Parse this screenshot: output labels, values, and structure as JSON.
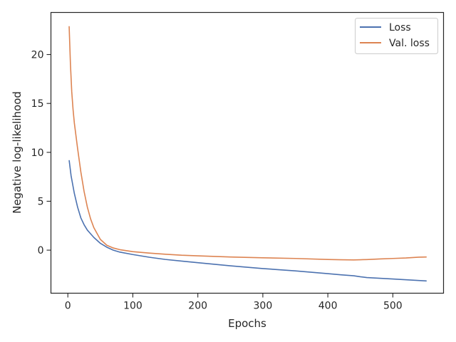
{
  "chart_data": {
    "type": "line",
    "title": "",
    "xlabel": "Epochs",
    "ylabel": "Negative log-likelihood",
    "xlim": [
      -26,
      578
    ],
    "ylim": [
      -4.4,
      24.3
    ],
    "xticks": [
      0,
      100,
      200,
      300,
      400,
      500
    ],
    "yticks": [
      0,
      5,
      10,
      15,
      20
    ],
    "grid": false,
    "legend_position": "top-right",
    "series": [
      {
        "name": "Loss",
        "color": "#4c72b0",
        "x": [
          2,
          5,
          10,
          15,
          20,
          25,
          30,
          40,
          50,
          60,
          70,
          80,
          100,
          125,
          150,
          175,
          200,
          250,
          300,
          350,
          400,
          420,
          440,
          450,
          460,
          500,
          540,
          552
        ],
        "y": [
          9.2,
          7.6,
          5.8,
          4.4,
          3.3,
          2.6,
          2.05,
          1.3,
          0.7,
          0.3,
          0.0,
          -0.2,
          -0.45,
          -0.72,
          -0.95,
          -1.12,
          -1.28,
          -1.6,
          -1.88,
          -2.12,
          -2.4,
          -2.52,
          -2.62,
          -2.72,
          -2.8,
          -2.95,
          -3.1,
          -3.15
        ]
      },
      {
        "name": "Val. loss",
        "color": "#dd8452",
        "x": [
          2,
          4,
          6,
          8,
          10,
          15,
          20,
          25,
          30,
          35,
          40,
          50,
          60,
          70,
          80,
          100,
          125,
          150,
          175,
          200,
          250,
          300,
          350,
          400,
          420,
          440,
          450,
          460,
          480,
          500,
          520,
          540,
          552
        ],
        "y": [
          22.9,
          19.0,
          16.2,
          14.4,
          13.0,
          10.4,
          8.0,
          6.0,
          4.4,
          3.2,
          2.3,
          1.1,
          0.5,
          0.22,
          0.05,
          -0.15,
          -0.3,
          -0.42,
          -0.52,
          -0.58,
          -0.7,
          -0.78,
          -0.85,
          -0.95,
          -0.98,
          -1.0,
          -0.98,
          -0.96,
          -0.9,
          -0.85,
          -0.8,
          -0.72,
          -0.7
        ]
      }
    ]
  }
}
